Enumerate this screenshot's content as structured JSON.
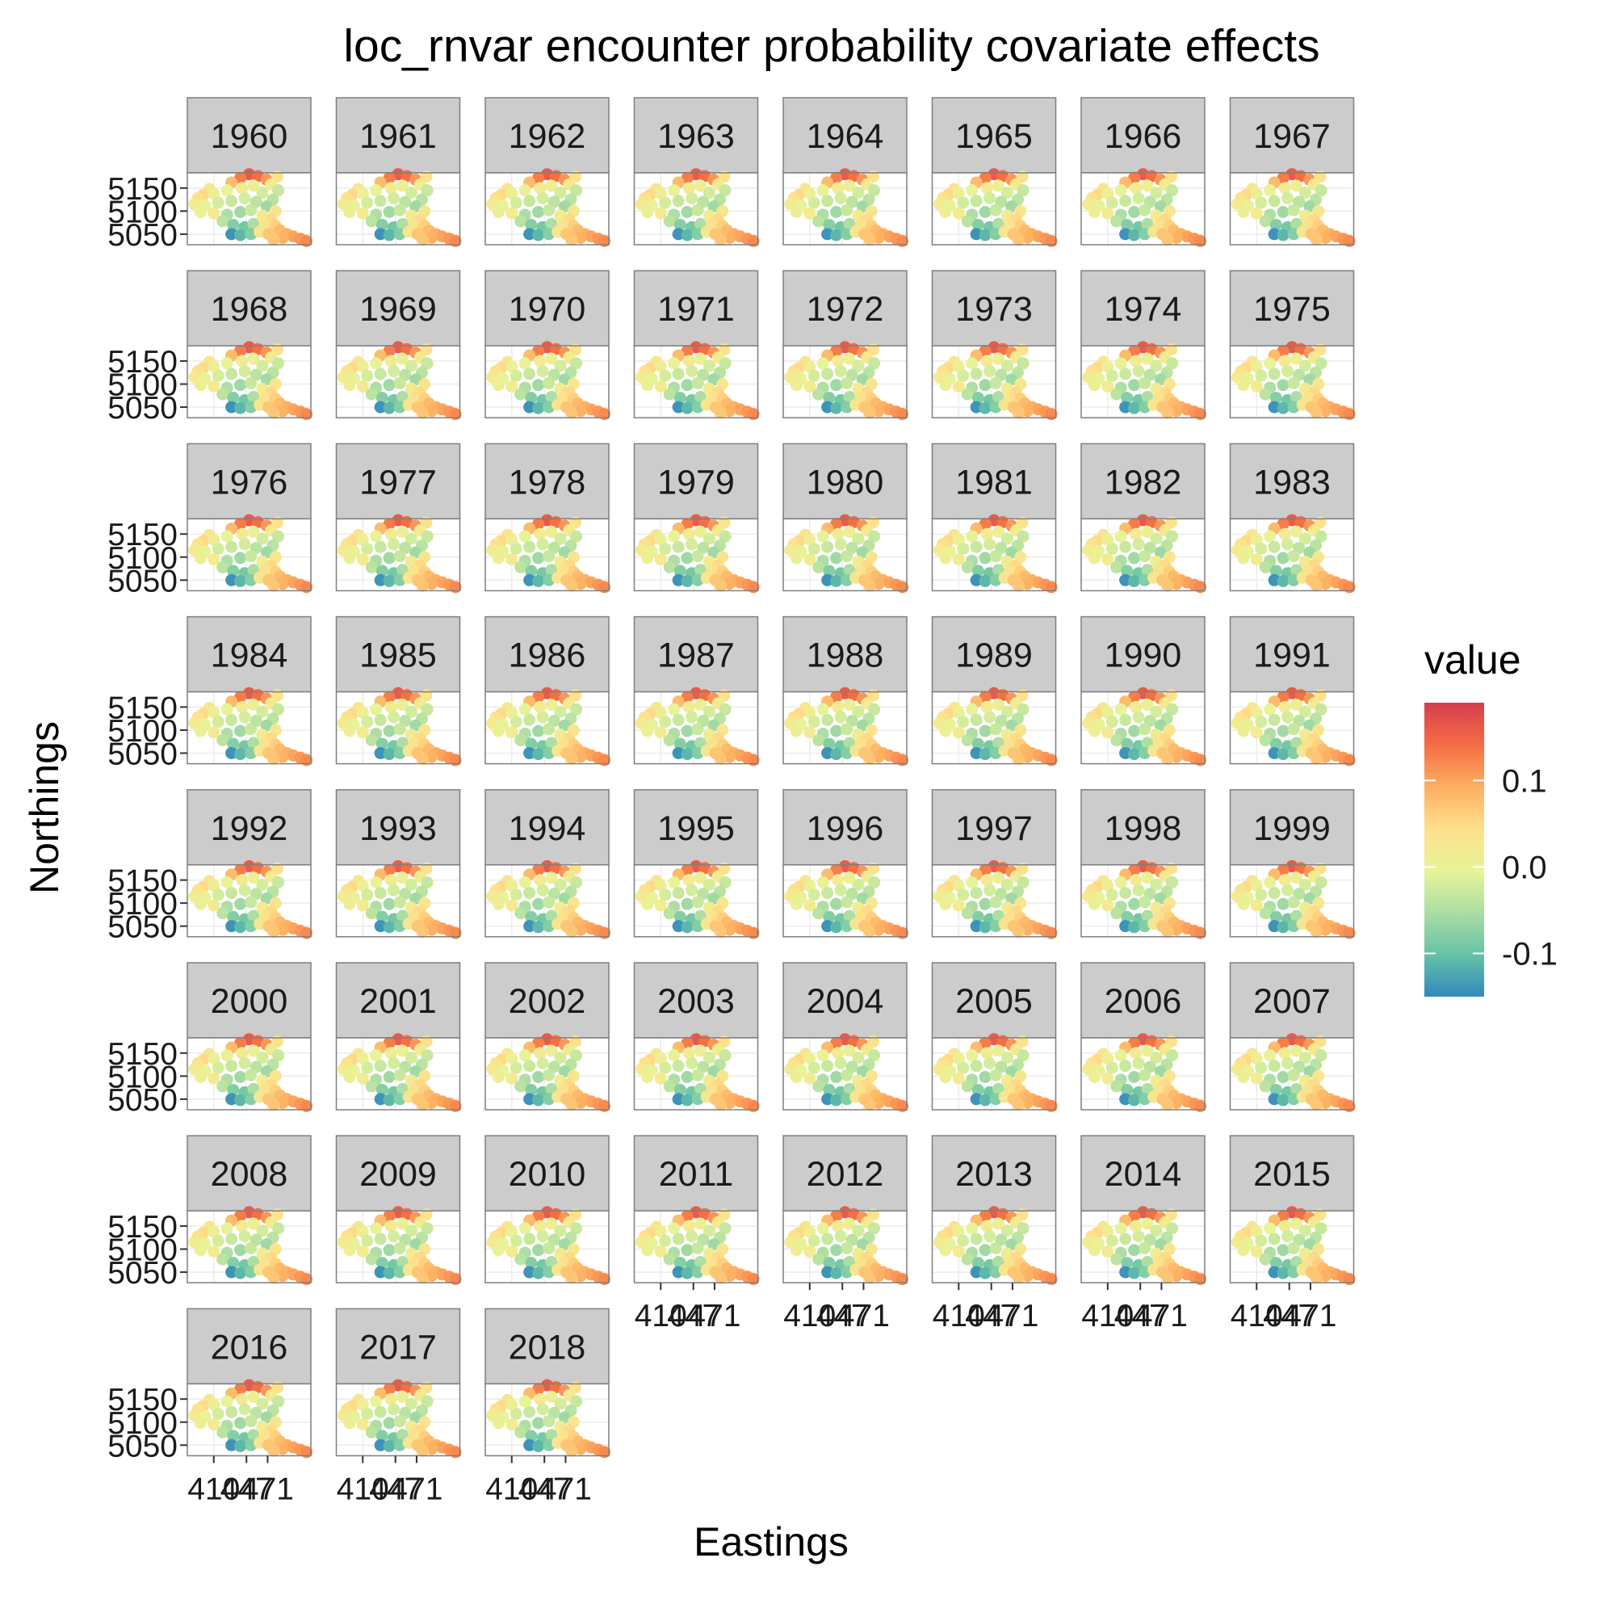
{
  "chart_data": {
    "type": "scatter",
    "title": "loc_rnvar encounter probability covariate effects",
    "xlabel": "Eastings",
    "ylabel": "Northings",
    "facets": [
      "1960",
      "1961",
      "1962",
      "1963",
      "1964",
      "1965",
      "1966",
      "1967",
      "1968",
      "1969",
      "1970",
      "1971",
      "1972",
      "1973",
      "1974",
      "1975",
      "1976",
      "1977",
      "1978",
      "1979",
      "1980",
      "1981",
      "1982",
      "1983",
      "1984",
      "1985",
      "1986",
      "1987",
      "1988",
      "1989",
      "1990",
      "1991",
      "1992",
      "1993",
      "1994",
      "1995",
      "1996",
      "1997",
      "1998",
      "1999",
      "2000",
      "2001",
      "2002",
      "2003",
      "2004",
      "2005",
      "2006",
      "2007",
      "2008",
      "2009",
      "2010",
      "2011",
      "2012",
      "2013",
      "2014",
      "2015",
      "2016",
      "2017",
      "2018"
    ],
    "facet_columns": 8,
    "y_ticks": [
      "5150",
      "5100",
      "5050"
    ],
    "x_ticks": [
      "410",
      "447",
      "471"
    ],
    "xlim": [
      380,
      520
    ],
    "ylim": [
      5027,
      5183
    ],
    "legend": {
      "title": "value",
      "position": "right",
      "ticks": [
        "0.1",
        "0.0",
        "-0.1"
      ],
      "range": [
        -0.15,
        0.19
      ]
    },
    "colors": {
      "scale": [
        "#3288bd",
        "#66c2a5",
        "#abdda4",
        "#e6f598",
        "#fee08b",
        "#fdae61",
        "#f46d43",
        "#d53e4f"
      ],
      "strip_fill": "#cccccc",
      "panel_border": "#7f7f7f",
      "grid": "#ebebeb"
    },
    "points": [
      {
        "x": 450,
        "y": 5180,
        "v": 0.16
      },
      {
        "x": 440,
        "y": 5172,
        "v": 0.13
      },
      {
        "x": 460,
        "y": 5176,
        "v": 0.14
      },
      {
        "x": 470,
        "y": 5168,
        "v": 0.11
      },
      {
        "x": 430,
        "y": 5162,
        "v": 0.08
      },
      {
        "x": 482,
        "y": 5175,
        "v": 0.04
      },
      {
        "x": 475,
        "y": 5158,
        "v": 0.02
      },
      {
        "x": 483,
        "y": 5145,
        "v": -0.03
      },
      {
        "x": 405,
        "y": 5148,
        "v": 0.03
      },
      {
        "x": 398,
        "y": 5135,
        "v": 0.05
      },
      {
        "x": 392,
        "y": 5128,
        "v": 0.04
      },
      {
        "x": 410,
        "y": 5138,
        "v": 0.01
      },
      {
        "x": 425,
        "y": 5145,
        "v": 0.0
      },
      {
        "x": 442,
        "y": 5150,
        "v": 0.02
      },
      {
        "x": 455,
        "y": 5155,
        "v": 0.01
      },
      {
        "x": 465,
        "y": 5140,
        "v": -0.02
      },
      {
        "x": 477,
        "y": 5125,
        "v": -0.04
      },
      {
        "x": 388,
        "y": 5115,
        "v": 0.02
      },
      {
        "x": 400,
        "y": 5112,
        "v": 0.0
      },
      {
        "x": 415,
        "y": 5118,
        "v": -0.02
      },
      {
        "x": 430,
        "y": 5122,
        "v": -0.03
      },
      {
        "x": 445,
        "y": 5128,
        "v": -0.02
      },
      {
        "x": 458,
        "y": 5120,
        "v": -0.04
      },
      {
        "x": 470,
        "y": 5110,
        "v": -0.06
      },
      {
        "x": 480,
        "y": 5100,
        "v": 0.03
      },
      {
        "x": 395,
        "y": 5098,
        "v": 0.01
      },
      {
        "x": 410,
        "y": 5095,
        "v": 0.02
      },
      {
        "x": 425,
        "y": 5092,
        "v": -0.05
      },
      {
        "x": 440,
        "y": 5098,
        "v": -0.06
      },
      {
        "x": 452,
        "y": 5102,
        "v": -0.03
      },
      {
        "x": 465,
        "y": 5090,
        "v": 0.02
      },
      {
        "x": 475,
        "y": 5082,
        "v": 0.05
      },
      {
        "x": 420,
        "y": 5078,
        "v": -0.04
      },
      {
        "x": 432,
        "y": 5070,
        "v": -0.08
      },
      {
        "x": 445,
        "y": 5065,
        "v": -0.09
      },
      {
        "x": 455,
        "y": 5072,
        "v": -0.05
      },
      {
        "x": 468,
        "y": 5070,
        "v": 0.04
      },
      {
        "x": 480,
        "y": 5068,
        "v": 0.06
      },
      {
        "x": 430,
        "y": 5050,
        "v": -0.14
      },
      {
        "x": 440,
        "y": 5048,
        "v": -0.11
      },
      {
        "x": 452,
        "y": 5050,
        "v": -0.08
      },
      {
        "x": 462,
        "y": 5055,
        "v": 0.03
      },
      {
        "x": 472,
        "y": 5050,
        "v": 0.07
      },
      {
        "x": 485,
        "y": 5058,
        "v": 0.08
      },
      {
        "x": 493,
        "y": 5050,
        "v": 0.09
      },
      {
        "x": 500,
        "y": 5045,
        "v": 0.1
      },
      {
        "x": 508,
        "y": 5040,
        "v": 0.11
      },
      {
        "x": 515,
        "y": 5035,
        "v": 0.12
      },
      {
        "x": 488,
        "y": 5042,
        "v": 0.09
      },
      {
        "x": 478,
        "y": 5038,
        "v": 0.07
      }
    ]
  }
}
